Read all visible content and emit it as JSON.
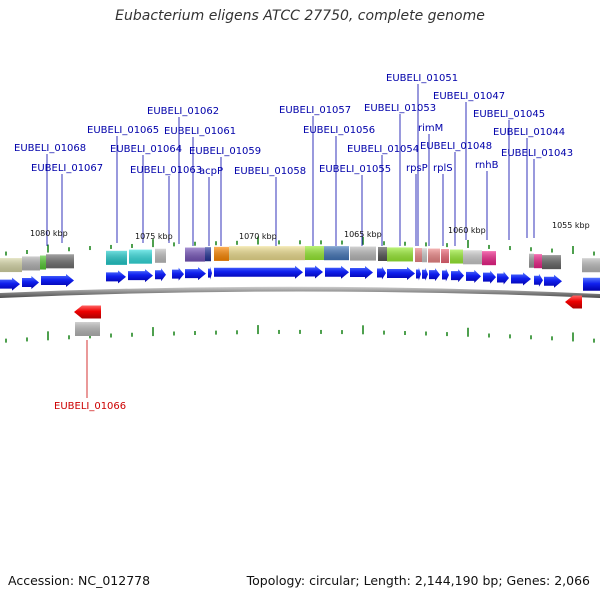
{
  "title": "Eubacterium eligens ATCC 27750, complete genome",
  "footer": {
    "accession": "Accession: NC_012778",
    "info": "Topology: circular; Length: 2,144,190 bp; Genes: 2,066"
  },
  "colors": {
    "forward_gene": "#0000ee",
    "reverse_gene": "#ee0000",
    "forward_label": "#0000aa",
    "reverse_label": "#cc0000",
    "backbone": "#777777",
    "tick": "#228822"
  },
  "scale_labels": [
    {
      "text": "1080 kbp"
    },
    {
      "text": "1075 kbp"
    },
    {
      "text": "1070 kbp"
    },
    {
      "text": "1065 kbp"
    },
    {
      "text": "1060 kbp"
    },
    {
      "text": "1055 kbp"
    }
  ],
  "gene_labels": [
    {
      "text": "EUBELI_01068",
      "strand": "forward"
    },
    {
      "text": "EUBELI_01067",
      "strand": "forward"
    },
    {
      "text": "EUBELI_01065",
      "strand": "forward"
    },
    {
      "text": "EUBELI_01064",
      "strand": "forward"
    },
    {
      "text": "EUBELI_01063",
      "strand": "forward"
    },
    {
      "text": "EUBELI_01062",
      "strand": "forward"
    },
    {
      "text": "EUBELI_01061",
      "strand": "forward"
    },
    {
      "text": "acpP",
      "strand": "forward"
    },
    {
      "text": "EUBELI_01059",
      "strand": "forward"
    },
    {
      "text": "EUBELI_01058",
      "strand": "forward"
    },
    {
      "text": "EUBELI_01057",
      "strand": "forward"
    },
    {
      "text": "EUBELI_01056",
      "strand": "forward"
    },
    {
      "text": "EUBELI_01055",
      "strand": "forward"
    },
    {
      "text": "EUBELI_01054",
      "strand": "forward"
    },
    {
      "text": "EUBELI_01053",
      "strand": "forward"
    },
    {
      "text": "EUBELI_01051",
      "strand": "forward"
    },
    {
      "text": "rimM",
      "strand": "forward"
    },
    {
      "text": "rpsP",
      "strand": "forward"
    },
    {
      "text": "rplS",
      "strand": "forward"
    },
    {
      "text": "EUBELI_01048",
      "strand": "forward"
    },
    {
      "text": "EUBELI_01047",
      "strand": "forward"
    },
    {
      "text": "rnhB",
      "strand": "forward"
    },
    {
      "text": "EUBELI_01045",
      "strand": "forward"
    },
    {
      "text": "EUBELI_01044",
      "strand": "forward"
    },
    {
      "text": "EUBELI_01043",
      "strand": "forward"
    },
    {
      "text": "EUBELI_01066",
      "strand": "reverse"
    }
  ]
}
